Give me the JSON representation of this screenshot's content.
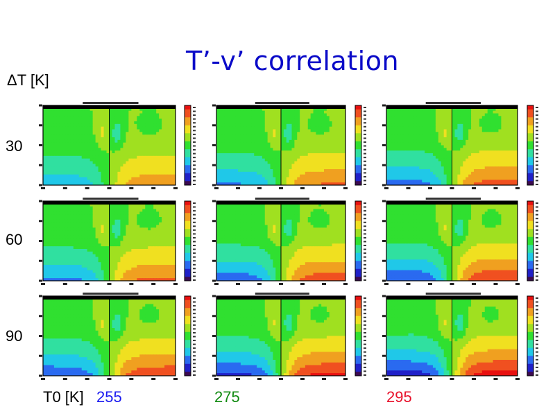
{
  "header": {
    "title": "T’-v’ correlation"
  },
  "rows": {
    "axis_label": "ΔT [K]",
    "values": [
      "30",
      "60",
      "90"
    ]
  },
  "cols": {
    "axis_label": "T0 [K]",
    "values": [
      "255",
      "275",
      "295"
    ],
    "colors": [
      "#1a1af0",
      "#108a10",
      "#e8102a"
    ]
  },
  "chart_data": {
    "type": "heatmap",
    "title": "T’-v’ correlation",
    "layout": "3x3 grid of latitude-height contour plots",
    "row_variable": "ΔT [K]",
    "col_variable": "T0 [K]",
    "rows": [
      30,
      60,
      90
    ],
    "cols": [
      255,
      275,
      295
    ],
    "colorbar_range": [
      -1.0,
      1.0
    ],
    "colormap": [
      "#3c0a50",
      "#2020c8",
      "#2a6af0",
      "#20c8e8",
      "#30e0a0",
      "#30e030",
      "#a0e020",
      "#f0e020",
      "#f0a020",
      "#f05020",
      "#e81010"
    ]
  }
}
